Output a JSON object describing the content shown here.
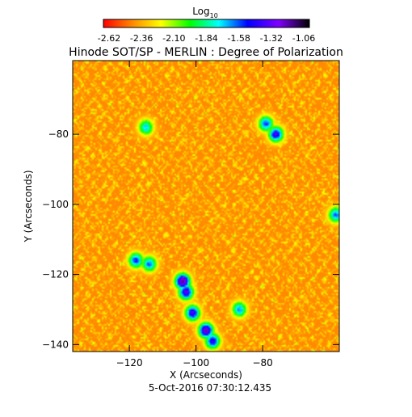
{
  "chart_data": {
    "type": "heatmap",
    "title": "Hinode SOT/SP - MERLIN : Degree of Polarization",
    "subtitle": "5-Oct-2016 07:30:12.435",
    "xlabel": "X (Arcseconds)",
    "ylabel": "Y (Arcseconds)",
    "xlim": [
      -137,
      -57
    ],
    "ylim": [
      -142,
      -59
    ],
    "xticks": [
      -120,
      -100,
      -80
    ],
    "yticks": [
      -80,
      -100,
      -120,
      -140
    ],
    "colorbar": {
      "title_base": "Log",
      "title_sub": "10",
      "ticks": [
        "-2.62",
        "-2.36",
        "-2.10",
        "-1.84",
        "-1.58",
        "-1.32",
        "-1.06"
      ],
      "range": [
        -2.62,
        -1.06
      ],
      "colors": [
        "#ff0000",
        "#ff8800",
        "#ffff00",
        "#00ff00",
        "#00ffff",
        "#0000ff",
        "#8000ff",
        "#000000"
      ]
    },
    "background_level": -2.4,
    "features": [
      {
        "x": -103,
        "y": -125,
        "level": -1.35
      },
      {
        "x": -104,
        "y": -122,
        "level": -1.15
      },
      {
        "x": -101,
        "y": -131,
        "level": -1.4
      },
      {
        "x": -97,
        "y": -136,
        "level": -1.25
      },
      {
        "x": -95,
        "y": -139,
        "level": -1.45
      },
      {
        "x": -118,
        "y": -116,
        "level": -1.55
      },
      {
        "x": -114,
        "y": -117,
        "level": -1.6
      },
      {
        "x": -87,
        "y": -130,
        "level": -1.65
      },
      {
        "x": -79,
        "y": -77,
        "level": -1.55
      },
      {
        "x": -76,
        "y": -80,
        "level": -1.4
      },
      {
        "x": -115,
        "y": -78,
        "level": -1.7
      },
      {
        "x": -58,
        "y": -103,
        "level": -1.6
      }
    ]
  }
}
